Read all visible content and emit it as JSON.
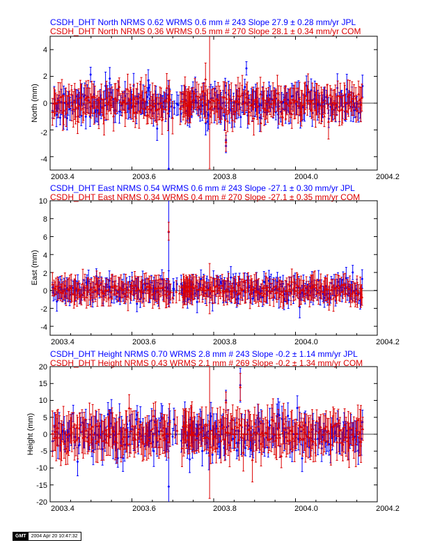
{
  "footer": {
    "logo": "GMT",
    "timestamp": "2004 Apr 20 10:47:32"
  },
  "colors": {
    "series1": "#0000ff",
    "series2": "#dd0000",
    "zero": "#000000"
  },
  "chart_data": [
    {
      "type": "scatter",
      "id": "north",
      "header": [
        "CSDH_DHT North NRMS 0.62 WRMS  0.6 mm # 243 Slope   27.9 ±  0.28 mm/yr JPL",
        "CSDH_DHT North NRMS 0.36 WRMS  0.5 mm # 270 Slope   28.1 ±  0.34 mm/yr COM"
      ],
      "ylabel": "North (mm)",
      "xlim": [
        2003.4,
        2004.2
      ],
      "ylim": [
        -5,
        5
      ],
      "xticks": [
        "2003.4",
        "2003.6",
        "2003.8",
        "2004.0",
        "2004.2"
      ],
      "yticks": [
        "-4",
        "-2",
        "0",
        "2",
        "4"
      ],
      "series": [
        {
          "name": "JPL",
          "color": "#0000ff",
          "count": 243,
          "rms": 0.6,
          "err": 0.9,
          "seed": 11,
          "outliers": [
            [
              2003.69,
              -4.9,
              4.8
            ],
            [
              2003.83,
              -3.2,
              0.5
            ],
            [
              2003.83,
              -2.8,
              0.4
            ],
            [
              2003.88,
              2.6,
              0.5
            ],
            [
              2003.64,
              1.7,
              0.8
            ],
            [
              2003.72,
              -0.8,
              0.6
            ]
          ]
        },
        {
          "name": "COM",
          "color": "#dd0000",
          "count": 270,
          "rms": 0.5,
          "err": 1.1,
          "seed": 23,
          "outliers": [
            [
              2003.79,
              0.1,
              5.0
            ],
            [
              2003.83,
              -2.9,
              0.7
            ],
            [
              2003.69,
              0.4,
              0.9
            ],
            [
              2003.78,
              1.8,
              1.2
            ]
          ]
        }
      ]
    },
    {
      "type": "scatter",
      "id": "east",
      "header": [
        "CSDH_DHT East NRMS 0.54 WRMS  0.6 mm # 243 Slope  -27.1 ±  0.30 mm/yr JPL",
        "CSDH_DHT East NRMS 0.34 WRMS  0.4 mm # 270 Slope  -27.1 ±  0.35 mm/yr COM"
      ],
      "ylabel": "East (mm)",
      "xlim": [
        2003.4,
        2004.2
      ],
      "ylim": [
        -5,
        10
      ],
      "xticks": [
        "2003.4",
        "2003.6",
        "2003.8",
        "2004.0",
        "2004.2"
      ],
      "yticks": [
        "-4",
        "-2",
        "0",
        "2",
        "4",
        "6",
        "8",
        "10"
      ],
      "series": [
        {
          "name": "JPL",
          "color": "#0000ff",
          "count": 243,
          "rms": 0.6,
          "err": 1.0,
          "seed": 37,
          "outliers": [
            [
              2003.69,
              6.5,
              7.0
            ],
            [
              2003.69,
              0.2,
              2.0
            ],
            [
              2003.86,
              -0.9,
              0.6
            ],
            [
              2004.14,
              2.0,
              0.8
            ],
            [
              2003.71,
              0.7,
              0.7
            ]
          ]
        },
        {
          "name": "COM",
          "color": "#dd0000",
          "count": 270,
          "rms": 0.4,
          "err": 1.3,
          "seed": 53,
          "outliers": [
            [
              2003.69,
              6.6,
              1.0
            ],
            [
              2003.79,
              0.2,
              2.8
            ],
            [
              2003.7,
              -0.8,
              0.6
            ],
            [
              2004.16,
              -0.7,
              1.2
            ]
          ]
        }
      ]
    },
    {
      "type": "scatter",
      "id": "height",
      "header": [
        "CSDH_DHT Height NRMS 0.70 WRMS  2.8 mm # 243 Slope   -0.2 ±  1.14 mm/yr JPL",
        "CSDH_DHT Height NRMS 0.43 WRMS  2.1 mm # 269 Slope   -0.2 ±  1.34 mm/yr COM"
      ],
      "ylabel": "Height (mm)",
      "xlim": [
        2003.4,
        2004.2
      ],
      "ylim": [
        -20,
        20
      ],
      "xticks": [
        "2003.4",
        "2003.6",
        "2003.8",
        "2004.0",
        "2004.2"
      ],
      "yticks": [
        "-20",
        "-15",
        "-10",
        "-5",
        "0",
        "5",
        "10",
        "15",
        "20"
      ],
      "series": [
        {
          "name": "JPL",
          "color": "#0000ff",
          "count": 243,
          "rms": 2.8,
          "err": 4.0,
          "seed": 71,
          "outliers": [
            [
              2003.69,
              -15.5,
              12.0
            ],
            [
              2003.83,
              10.0,
              3.0
            ],
            [
              2003.865,
              14.5,
              5.0
            ],
            [
              2003.81,
              -3.0,
              3.0
            ],
            [
              2003.69,
              0.0,
              5.0
            ]
          ]
        },
        {
          "name": "COM",
          "color": "#dd0000",
          "count": 269,
          "rms": 2.1,
          "err": 5.5,
          "seed": 89,
          "outliers": [
            [
              2003.79,
              0.5,
              19.5
            ],
            [
              2003.865,
              14.0,
              4.0
            ],
            [
              2003.83,
              9.5,
              3.0
            ],
            [
              2004.16,
              2.5,
              6.0
            ]
          ]
        }
      ]
    }
  ]
}
